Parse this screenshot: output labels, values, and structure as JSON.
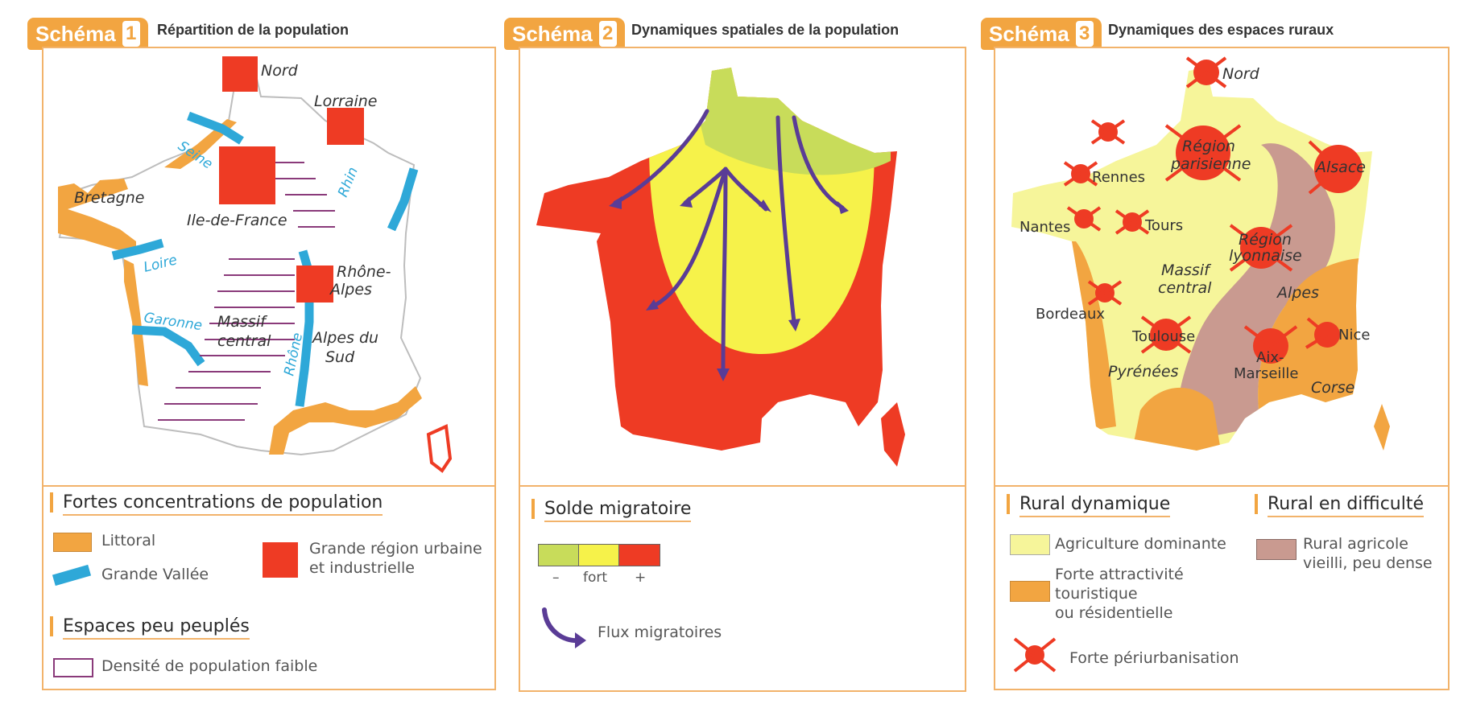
{
  "schema1": {
    "badge": "Schéma",
    "number": "1",
    "title": "Répartition de la population",
    "map_labels": {
      "nord": "Nord",
      "lorraine": "Lorraine",
      "bretagne": "Bretagne",
      "ile_de_france": "Ile-de-France",
      "rhone_alpes_1": "Rhône-",
      "rhone_alpes_2": "Alpes",
      "massif_1": "Massif",
      "massif_2": "central",
      "alpes_sud_1": "Alpes du",
      "alpes_sud_2": "Sud"
    },
    "rivers": {
      "seine": "Seine",
      "rhin": "Rhin",
      "loire": "Loire",
      "garonne": "Garonne",
      "rhone": "Rhône"
    },
    "legend": {
      "heading1": "Fortes concentrations de population",
      "littoral": "Littoral",
      "grande_vallee": "Grande Vallée",
      "urban_1": "Grande région urbaine",
      "urban_2": "et industrielle",
      "heading2": "Espaces peu peuplés",
      "faible": "Densité de population faible"
    }
  },
  "schema2": {
    "badge": "Schéma",
    "number": "2",
    "title": "Dynamiques spatiales de la population",
    "legend": {
      "heading": "Solde migratoire",
      "minus": "–",
      "fort": "fort",
      "plus": "+",
      "flux": "Flux migratoires"
    }
  },
  "schema3": {
    "badge": "Schéma",
    "number": "3",
    "title": "Dynamiques des espaces ruraux",
    "map_labels": {
      "nord": "Nord",
      "region_par_1": "Région",
      "region_par_2": "parisienne",
      "alsace": "Alsace",
      "rennes": "Rennes",
      "nantes": "Nantes",
      "tours": "Tours",
      "region_lyon_1": "Région",
      "region_lyon_2": "lyonnaise",
      "massif_1": "Massif",
      "massif_2": "central",
      "alpes": "Alpes",
      "bordeaux": "Bordeaux",
      "toulouse": "Toulouse",
      "aix_1": "Aix-",
      "aix_2": "Marseille",
      "nice": "Nice",
      "pyrenees": "Pyrénées",
      "corse": "Corse"
    },
    "legend": {
      "heading1": "Rural dynamique",
      "heading2": "Rural en difficulté",
      "agri": "Agriculture dominante",
      "touris_1": "Forte attractivité",
      "touris_2": "touristique",
      "touris_3": "ou résidentielle",
      "peri": "Forte périurbanisation",
      "rural_1": "Rural agricole",
      "rural_2": "vieilli, peu dense"
    }
  },
  "colors": {
    "orange_tab": "#f2a541",
    "frame": "#f2b36b",
    "littoral": "#f2a541",
    "vallee": "#2ea8d8",
    "urban": "#ee3b24",
    "faible": "#8a3a7a",
    "green": "#c8dc5a",
    "yellow": "#f6f24a",
    "red": "#ee3b24",
    "pale_yellow": "#f6f59a",
    "mauve": "#c99a90",
    "arrow": "#5a3c96"
  }
}
